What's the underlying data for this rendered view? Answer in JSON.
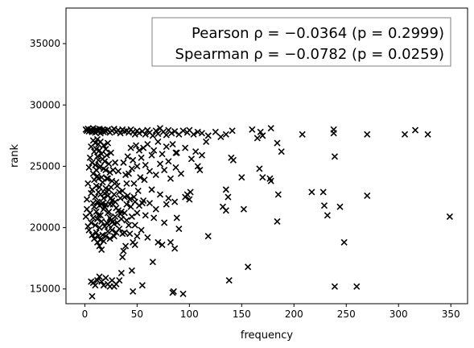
{
  "chart_data": {
    "type": "scatter",
    "title": "",
    "xlabel": "frequency",
    "ylabel": "rank",
    "xlim": [
      -18,
      366
    ],
    "ylim": [
      13800,
      37900
    ],
    "xticks": [
      0,
      50,
      100,
      150,
      200,
      250,
      300,
      350
    ],
    "yticks": [
      15000,
      20000,
      25000,
      30000,
      35000
    ],
    "grid": false,
    "marker": "x",
    "marker_color": "#000000",
    "annotation_lines": [
      "Pearson ρ = −0.0364 (p = 0.2999)",
      "Spearman ρ = −0.0782 (p = 0.0259)"
    ],
    "annotation_placement": "top-right",
    "points": [
      [
        1,
        28000
      ],
      [
        2,
        27900
      ],
      [
        3,
        28050
      ],
      [
        4,
        27850
      ],
      [
        5,
        27950
      ],
      [
        6,
        28000
      ],
      [
        7,
        27800
      ],
      [
        8,
        28100
      ],
      [
        9,
        27900
      ],
      [
        10,
        27750
      ],
      [
        11,
        28000
      ],
      [
        12,
        27950
      ],
      [
        13,
        27850
      ],
      [
        14,
        28050
      ],
      [
        15,
        27700
      ],
      [
        16,
        27900
      ],
      [
        17,
        28000
      ],
      [
        18,
        27800
      ],
      [
        19,
        27950
      ],
      [
        20,
        27850
      ],
      [
        22,
        28000
      ],
      [
        24,
        27750
      ],
      [
        26,
        27900
      ],
      [
        28,
        28050
      ],
      [
        30,
        27800
      ],
      [
        32,
        27950
      ],
      [
        34,
        27700
      ],
      [
        36,
        28000
      ],
      [
        38,
        27850
      ],
      [
        40,
        27900
      ],
      [
        42,
        27750
      ],
      [
        44,
        28000
      ],
      [
        46,
        27800
      ],
      [
        48,
        27600
      ],
      [
        50,
        27900
      ],
      [
        52,
        27700
      ],
      [
        55,
        27850
      ],
      [
        58,
        27600
      ],
      [
        60,
        27950
      ],
      [
        62,
        27750
      ],
      [
        65,
        27500
      ],
      [
        68,
        27900
      ],
      [
        70,
        27650
      ],
      [
        72,
        28100
      ],
      [
        75,
        27800
      ],
      [
        78,
        27550
      ],
      [
        80,
        27950
      ],
      [
        83,
        27700
      ],
      [
        86,
        27850
      ],
      [
        90,
        27600
      ],
      [
        94,
        27900
      ],
      [
        98,
        27750
      ],
      [
        100,
        27950
      ],
      [
        104,
        27600
      ],
      [
        108,
        27800
      ],
      [
        112,
        27700
      ],
      [
        118,
        27500
      ],
      [
        125,
        27800
      ],
      [
        130,
        27400
      ],
      [
        135,
        27600
      ],
      [
        141,
        27900
      ],
      [
        160,
        28000
      ],
      [
        168,
        27800
      ],
      [
        178,
        28100
      ],
      [
        184,
        26900
      ],
      [
        188,
        26200
      ],
      [
        170,
        27500
      ],
      [
        165,
        27300
      ],
      [
        208,
        27600
      ],
      [
        238,
        28000
      ],
      [
        238,
        27700
      ],
      [
        270,
        27600
      ],
      [
        306,
        27600
      ],
      [
        316,
        27950
      ],
      [
        328,
        27600
      ],
      [
        239,
        25800
      ],
      [
        228,
        22900
      ],
      [
        217,
        22900
      ],
      [
        229,
        21800
      ],
      [
        232,
        21000
      ],
      [
        244,
        21700
      ],
      [
        270,
        22600
      ],
      [
        349,
        20900
      ],
      [
        248,
        18800
      ],
      [
        239,
        15200
      ],
      [
        260,
        15200
      ],
      [
        184,
        20500
      ],
      [
        185,
        22700
      ],
      [
        167,
        24800
      ],
      [
        170,
        24100
      ],
      [
        178,
        23800
      ],
      [
        177,
        24000
      ],
      [
        150,
        24100
      ],
      [
        140,
        25700
      ],
      [
        142,
        25500
      ],
      [
        135,
        23100
      ],
      [
        137,
        22500
      ],
      [
        132,
        21700
      ],
      [
        135,
        21400
      ],
      [
        152,
        21500
      ],
      [
        156,
        16800
      ],
      [
        138,
        15700
      ],
      [
        118,
        19300
      ],
      [
        110,
        24700
      ],
      [
        112,
        25900
      ],
      [
        108,
        25000
      ],
      [
        98,
        22700
      ],
      [
        96,
        22500
      ],
      [
        100,
        22300
      ],
      [
        101,
        22900
      ],
      [
        94,
        14600
      ],
      [
        85,
        14800
      ],
      [
        84,
        14700
      ],
      [
        86,
        18300
      ],
      [
        90,
        19900
      ],
      [
        88,
        20800
      ],
      [
        86,
        22100
      ],
      [
        87,
        24900
      ],
      [
        88,
        26100
      ],
      [
        87,
        26100
      ],
      [
        82,
        24000
      ],
      [
        80,
        22400
      ],
      [
        76,
        20400
      ],
      [
        78,
        21900
      ],
      [
        82,
        18800
      ],
      [
        70,
        18800
      ],
      [
        74,
        18600
      ],
      [
        66,
        20800
      ],
      [
        68,
        21500
      ],
      [
        72,
        22700
      ],
      [
        60,
        19200
      ],
      [
        62,
        22000
      ],
      [
        64,
        23100
      ],
      [
        58,
        21000
      ],
      [
        56,
        22200
      ],
      [
        55,
        22000
      ],
      [
        52,
        21800
      ],
      [
        54,
        19800
      ],
      [
        50,
        21200
      ],
      [
        48,
        20200
      ],
      [
        48,
        18600
      ],
      [
        46,
        18800
      ],
      [
        44,
        21700
      ],
      [
        42,
        20200
      ],
      [
        41,
        22600
      ],
      [
        40,
        23600
      ],
      [
        39,
        18500
      ],
      [
        38,
        19600
      ],
      [
        37,
        18100
      ],
      [
        36,
        17600
      ],
      [
        35,
        16300
      ],
      [
        33,
        15700
      ],
      [
        30,
        15400
      ],
      [
        28,
        15200
      ],
      [
        26,
        15700
      ],
      [
        24,
        15200
      ],
      [
        22,
        15400
      ],
      [
        20,
        15900
      ],
      [
        18,
        15300
      ],
      [
        16,
        15600
      ],
      [
        14,
        16000
      ],
      [
        12,
        15700
      ],
      [
        10,
        15300
      ],
      [
        8,
        15500
      ],
      [
        7,
        14400
      ],
      [
        6,
        15600
      ],
      [
        55,
        15300
      ],
      [
        45,
        16500
      ],
      [
        46,
        14800
      ],
      [
        65,
        17200
      ],
      [
        15,
        21000
      ],
      [
        16,
        20500
      ],
      [
        17,
        22000
      ],
      [
        18,
        21500
      ],
      [
        19,
        22800
      ],
      [
        20,
        23200
      ],
      [
        21,
        24000
      ],
      [
        22,
        22600
      ],
      [
        23,
        21300
      ],
      [
        24,
        20800
      ],
      [
        25,
        22400
      ],
      [
        26,
        23800
      ],
      [
        27,
        21900
      ],
      [
        28,
        20300
      ],
      [
        29,
        22100
      ],
      [
        30,
        21600
      ],
      [
        31,
        23400
      ],
      [
        32,
        24600
      ],
      [
        33,
        22900
      ],
      [
        34,
        21100
      ],
      [
        35,
        20700
      ],
      [
        36,
        23000
      ],
      [
        37,
        25300
      ],
      [
        38,
        22500
      ],
      [
        39,
        24300
      ],
      [
        40,
        21900
      ],
      [
        41,
        25800
      ],
      [
        42,
        24400
      ],
      [
        43,
        22300
      ],
      [
        44,
        26500
      ],
      [
        45,
        24800
      ],
      [
        46,
        25500
      ],
      [
        47,
        23600
      ],
      [
        48,
        22100
      ],
      [
        49,
        26700
      ],
      [
        50,
        25000
      ],
      [
        51,
        23000
      ],
      [
        52,
        26300
      ],
      [
        53,
        24100
      ],
      [
        54,
        25700
      ],
      [
        56,
        26500
      ],
      [
        57,
        23900
      ],
      [
        58,
        25100
      ],
      [
        60,
        26800
      ],
      [
        62,
        24600
      ],
      [
        64,
        25900
      ],
      [
        66,
        26300
      ],
      [
        68,
        24300
      ],
      [
        70,
        27000
      ],
      [
        72,
        25200
      ],
      [
        74,
        26000
      ],
      [
        76,
        24700
      ],
      [
        78,
        26600
      ],
      [
        80,
        25400
      ],
      [
        84,
        26800
      ],
      [
        92,
        24400
      ],
      [
        96,
        26500
      ],
      [
        102,
        25600
      ],
      [
        106,
        26200
      ],
      [
        116,
        27000
      ],
      [
        1,
        20900
      ],
      [
        2,
        21500
      ],
      [
        2,
        22300
      ],
      [
        3,
        20100
      ],
      [
        3,
        23600
      ],
      [
        4,
        19800
      ],
      [
        4,
        24900
      ],
      [
        5,
        21200
      ],
      [
        5,
        25700
      ],
      [
        6,
        20400
      ],
      [
        6,
        22800
      ],
      [
        6,
        26600
      ],
      [
        7,
        19400
      ],
      [
        7,
        23100
      ],
      [
        7,
        25300
      ],
      [
        8,
        20800
      ],
      [
        8,
        22000
      ],
      [
        8,
        24400
      ],
      [
        8,
        27100
      ],
      [
        9,
        19100
      ],
      [
        9,
        21700
      ],
      [
        9,
        23900
      ],
      [
        9,
        26200
      ],
      [
        10,
        20200
      ],
      [
        10,
        22500
      ],
      [
        10,
        25100
      ],
      [
        10,
        26900
      ],
      [
        11,
        19600
      ],
      [
        11,
        21300
      ],
      [
        11,
        23400
      ],
      [
        11,
        24700
      ],
      [
        11,
        26400
      ],
      [
        12,
        18800
      ],
      [
        12,
        20700
      ],
      [
        12,
        22100
      ],
      [
        12,
        24200
      ],
      [
        12,
        25800
      ],
      [
        12,
        27200
      ],
      [
        13,
        19300
      ],
      [
        13,
        21000
      ],
      [
        13,
        22900
      ],
      [
        13,
        24000
      ],
      [
        13,
        25500
      ],
      [
        13,
        26800
      ],
      [
        14,
        18500
      ],
      [
        14,
        20000
      ],
      [
        14,
        21800
      ],
      [
        14,
        23300
      ],
      [
        14,
        24900
      ],
      [
        14,
        26300
      ],
      [
        15,
        19000
      ],
      [
        15,
        22700
      ],
      [
        15,
        25000
      ],
      [
        15,
        27000
      ],
      [
        16,
        18200
      ],
      [
        16,
        21900
      ],
      [
        16,
        24100
      ],
      [
        16,
        26000
      ],
      [
        17,
        19400
      ],
      [
        17,
        23700
      ],
      [
        17,
        25600
      ],
      [
        18,
        18900
      ],
      [
        18,
        22400
      ],
      [
        18,
        24800
      ],
      [
        18,
        26700
      ],
      [
        19,
        20100
      ],
      [
        19,
        21700
      ],
      [
        19,
        25400
      ],
      [
        20,
        19300
      ],
      [
        20,
        21900
      ],
      [
        20,
        24700
      ],
      [
        20,
        26400
      ],
      [
        21,
        20400
      ],
      [
        21,
        22900
      ],
      [
        21,
        25900
      ],
      [
        22,
        19700
      ],
      [
        22,
        21200
      ],
      [
        22,
        24000
      ],
      [
        22,
        26900
      ],
      [
        23,
        20200
      ],
      [
        23,
        23100
      ],
      [
        23,
        25200
      ],
      [
        24,
        19100
      ],
      [
        24,
        21900
      ],
      [
        24,
        24500
      ],
      [
        25,
        20600
      ],
      [
        25,
        23300
      ],
      [
        25,
        26100
      ],
      [
        26,
        19800
      ],
      [
        26,
        22200
      ],
      [
        27,
        20500
      ],
      [
        27,
        24700
      ],
      [
        28,
        19300
      ],
      [
        28,
        22700
      ],
      [
        29,
        20900
      ],
      [
        29,
        25300
      ],
      [
        30,
        19600
      ],
      [
        30,
        23700
      ],
      [
        31,
        20400
      ],
      [
        32,
        21400
      ],
      [
        33,
        19900
      ],
      [
        34,
        22400
      ],
      [
        35,
        21300
      ],
      [
        36,
        19500
      ],
      [
        38,
        21200
      ],
      [
        40,
        20600
      ],
      [
        43,
        19500
      ],
      [
        45,
        20900
      ],
      [
        47,
        22500
      ],
      [
        50,
        19300
      ]
    ]
  }
}
